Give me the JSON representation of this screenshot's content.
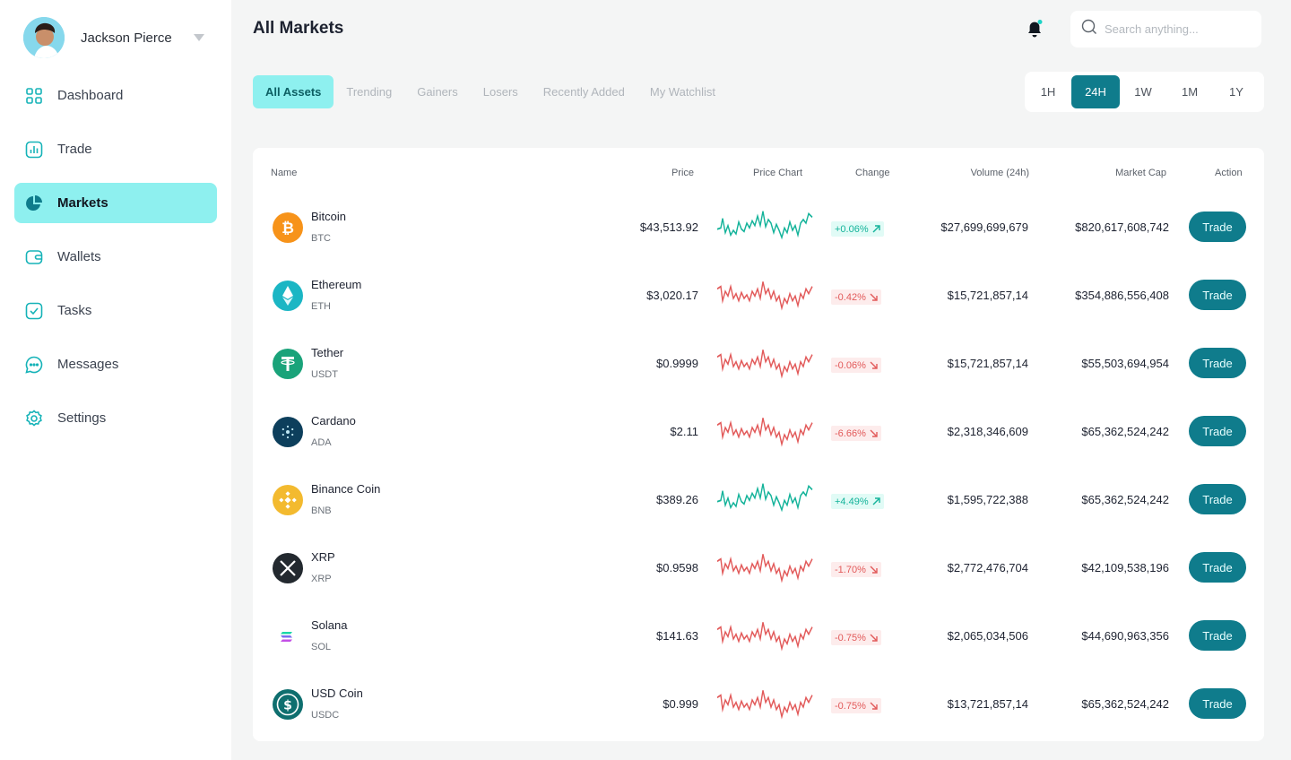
{
  "profile": {
    "name": "Jackson Pierce"
  },
  "nav": [
    {
      "label": "Dashboard",
      "icon": "grid-icon"
    },
    {
      "label": "Trade",
      "icon": "bar-chart-icon"
    },
    {
      "label": "Markets",
      "icon": "pie-chart-icon",
      "active": true
    },
    {
      "label": "Wallets",
      "icon": "wallet-icon"
    },
    {
      "label": "Tasks",
      "icon": "checkbox-icon"
    },
    {
      "label": "Messages",
      "icon": "message-icon"
    },
    {
      "label": "Settings",
      "icon": "gear-icon"
    }
  ],
  "header": {
    "title": "All Markets",
    "search_placeholder": "Search anything..."
  },
  "tabs": [
    "All Assets",
    "Trending",
    "Gainers",
    "Losers",
    "Recently Added",
    "My Watchlist"
  ],
  "timeframes": [
    "1H",
    "24H",
    "1W",
    "1M",
    "1Y"
  ],
  "active_timeframe": "24H",
  "table": {
    "columns": {
      "name": "Name",
      "price": "Price",
      "chart": "Price Chart",
      "change": "Change",
      "volume": "Volume (24h)",
      "mcap": "Market Cap",
      "action": "Action"
    },
    "trade_label": "Trade",
    "rows": [
      {
        "name": "Bitcoin",
        "symbol": "BTC",
        "price": "$43,513.92",
        "change": "+0.06%",
        "direction": "up",
        "volume": "$27,699,699,679",
        "mcap": "$820,617,608,742",
        "icon_color": "#f7931a"
      },
      {
        "name": "Ethereum",
        "symbol": "ETH",
        "price": "$3,020.17",
        "change": "-0.42%",
        "direction": "down",
        "volume": "$15,721,857,14",
        "mcap": "$354,886,556,408",
        "icon_color": "#1bb6c4"
      },
      {
        "name": "Tether",
        "symbol": "USDT",
        "price": "$0.9999",
        "change": "-0.06%",
        "direction": "down",
        "volume": "$15,721,857,14",
        "mcap": "$55,503,694,954",
        "icon_color": "#1aa37a"
      },
      {
        "name": "Cardano",
        "symbol": "ADA",
        "price": "$2.11",
        "change": "-6.66%",
        "direction": "down",
        "volume": "$2,318,346,609",
        "mcap": "$65,362,524,242",
        "icon_color": "#0d3f5c"
      },
      {
        "name": "Binance Coin",
        "symbol": "BNB",
        "price": "$389.26",
        "change": "+4.49%",
        "direction": "up",
        "volume": "$1,595,722,388",
        "mcap": "$65,362,524,242",
        "icon_color": "#f3ba2f"
      },
      {
        "name": "XRP",
        "symbol": "XRP",
        "price": "$0.9598",
        "change": "-1.70%",
        "direction": "down",
        "volume": "$2,772,476,704",
        "mcap": "$42,109,538,196",
        "icon_color": "#23292f"
      },
      {
        "name": "Solana",
        "symbol": "SOL",
        "price": "$141.63",
        "change": "-0.75%",
        "direction": "down",
        "volume": "$2,065,034,506",
        "mcap": "$44,690,963,356",
        "icon_color": "#ffffff"
      },
      {
        "name": "USD Coin",
        "symbol": "USDC",
        "price": "$0.999",
        "change": "-0.75%",
        "direction": "down",
        "volume": "$13,721,857,14",
        "mcap": "$65,362,524,242",
        "icon_color": "#0f6f6f"
      }
    ]
  },
  "colors": {
    "accent": "#0f7c8c",
    "highlight": "#8ef0ef",
    "up": "#14b39a",
    "down": "#e25a5a"
  }
}
